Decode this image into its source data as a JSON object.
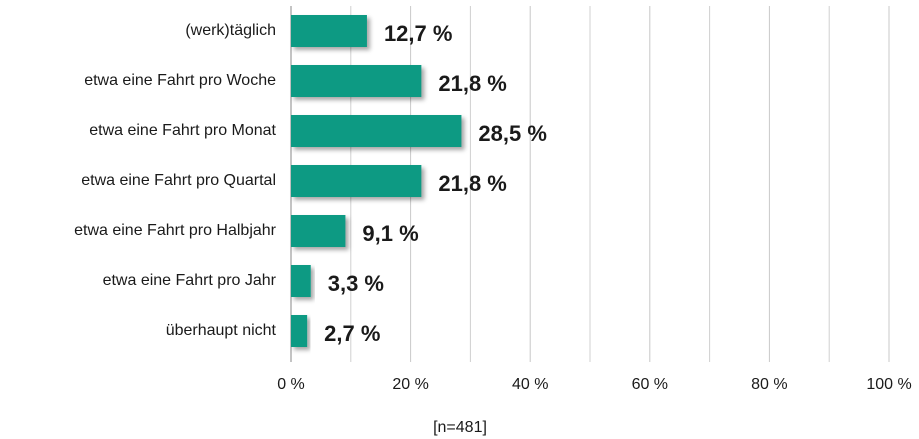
{
  "chart_data": {
    "type": "hbar",
    "categories": [
      "(werk)täglich",
      "etwa eine Fahrt pro Woche",
      "etwa eine Fahrt pro Monat",
      "etwa eine Fahrt pro Quartal",
      "etwa eine Fahrt pro Halbjahr",
      "etwa eine Fahrt pro Jahr",
      "überhaupt nicht"
    ],
    "values": [
      12.7,
      21.8,
      28.5,
      21.8,
      9.1,
      3.3,
      2.7
    ],
    "value_labels": [
      "12,7 %",
      "21,8 %",
      "28,5 %",
      "21,8 %",
      "9,1 %",
      "3,3 %",
      "2,7 %"
    ],
    "color": "#0e9a83",
    "xlim": [
      0,
      100
    ],
    "xticks": [
      {
        "value": 0,
        "label": "0 %"
      },
      {
        "value": 20,
        "label": "20 %"
      },
      {
        "value": 40,
        "label": "40 %"
      },
      {
        "value": 60,
        "label": "60 %"
      },
      {
        "value": 80,
        "label": "80 %"
      },
      {
        "value": 100,
        "label": "100 %"
      }
    ],
    "minor_xticks": [
      10,
      30,
      50,
      70,
      90
    ],
    "grid": true,
    "xlabel": "[n=481]"
  }
}
